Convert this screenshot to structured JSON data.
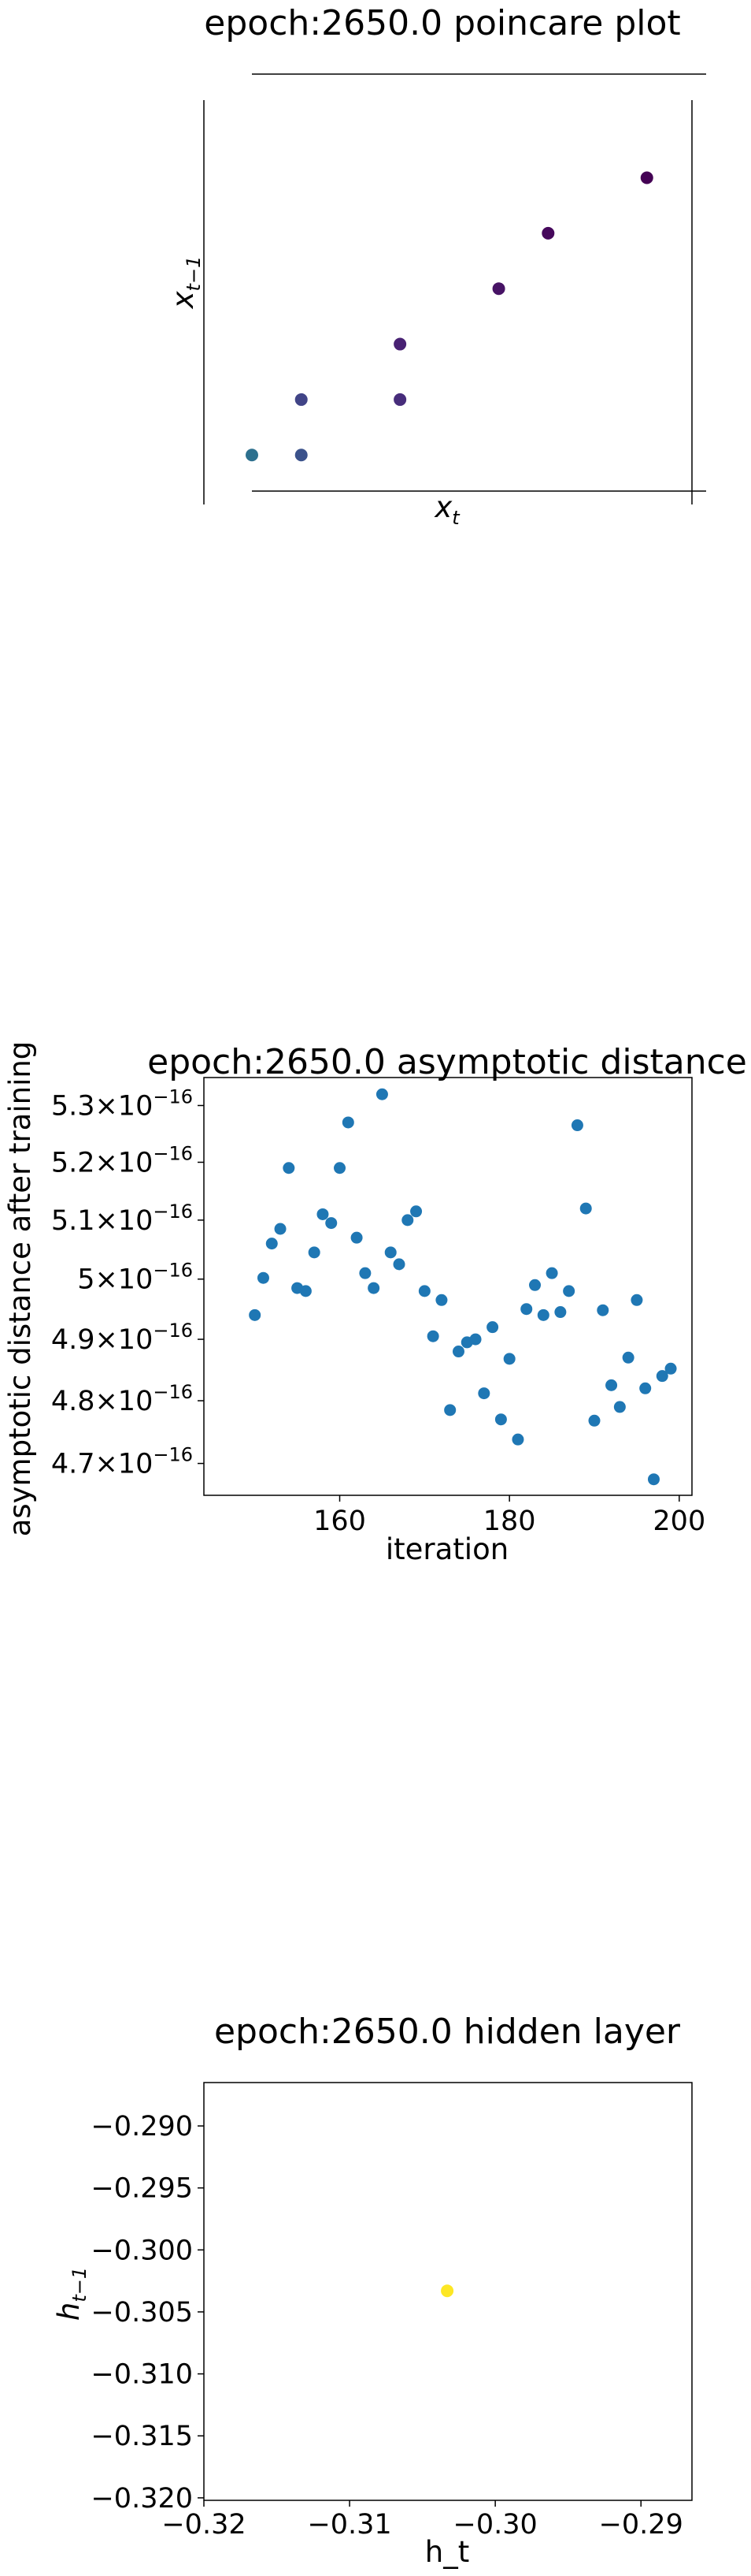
{
  "chart_data": [
    {
      "type": "scatter",
      "title": "epoch:2650.0 poincare plot",
      "xlabel_base": "x",
      "xlabel_sub": "t",
      "ylabel_base": "x",
      "ylabel_sub": "t−1",
      "axes_visible": false,
      "colormap": "viridis",
      "points": [
        {
          "x": 0,
          "y": 0,
          "color": "#2d708e"
        },
        {
          "x": 1,
          "y": 0,
          "color": "#3b528b"
        },
        {
          "x": 1,
          "y": 1,
          "color": "#414487"
        },
        {
          "x": 3,
          "y": 1,
          "color": "#472d7b"
        },
        {
          "x": 3,
          "y": 2,
          "color": "#482173"
        },
        {
          "x": 5,
          "y": 3,
          "color": "#471365"
        },
        {
          "x": 6,
          "y": 4,
          "color": "#46085c"
        },
        {
          "x": 8,
          "y": 5,
          "color": "#440154"
        }
      ],
      "xlim": [
        0,
        9.2
      ],
      "ylim": [
        -0.65,
        6.4
      ]
    },
    {
      "type": "scatter",
      "title": "epoch:2650.0 asymptotic distance",
      "xlabel": "iteration",
      "ylabel": "asymptotic distance after training",
      "yscale": "log",
      "marker_color": "#1f77b4",
      "xlim": [
        144,
        201.5
      ],
      "ylim": [
        4.65e-16,
        5.35e-16
      ],
      "x_ticks": [
        {
          "value": 160,
          "label": "160"
        },
        {
          "value": 180,
          "label": "180"
        },
        {
          "value": 200,
          "label": "200"
        }
      ],
      "y_ticks": [
        {
          "value": 4.7e-16,
          "base": "4.7",
          "exp": "−16"
        },
        {
          "value": 4.8e-16,
          "base": "4.8",
          "exp": "−16"
        },
        {
          "value": 4.9e-16,
          "base": "4.9",
          "exp": "−16"
        },
        {
          "value": 5e-16,
          "base": "5",
          "exp": "−16"
        },
        {
          "value": 5.1e-16,
          "base": "5.1",
          "exp": "−16"
        },
        {
          "value": 5.2e-16,
          "base": "5.2",
          "exp": "−16"
        },
        {
          "value": 5.3e-16,
          "base": "5.3",
          "exp": "−16"
        }
      ],
      "points": [
        {
          "x": 150,
          "y": 4.94e-16
        },
        {
          "x": 151,
          "y": 5.002e-16
        },
        {
          "x": 152,
          "y": 5.06e-16
        },
        {
          "x": 153,
          "y": 5.085e-16
        },
        {
          "x": 154,
          "y": 5.19e-16
        },
        {
          "x": 155,
          "y": 4.985e-16
        },
        {
          "x": 156,
          "y": 4.98e-16
        },
        {
          "x": 157,
          "y": 5.045e-16
        },
        {
          "x": 158,
          "y": 5.11e-16
        },
        {
          "x": 159,
          "y": 5.095e-16
        },
        {
          "x": 160,
          "y": 5.19e-16
        },
        {
          "x": 161,
          "y": 5.27e-16
        },
        {
          "x": 162,
          "y": 5.07e-16
        },
        {
          "x": 163,
          "y": 5.01e-16
        },
        {
          "x": 164,
          "y": 4.985e-16
        },
        {
          "x": 165,
          "y": 5.32e-16
        },
        {
          "x": 166,
          "y": 5.045e-16
        },
        {
          "x": 167,
          "y": 5.025e-16
        },
        {
          "x": 168,
          "y": 5.1e-16
        },
        {
          "x": 169,
          "y": 5.115e-16
        },
        {
          "x": 170,
          "y": 4.98e-16
        },
        {
          "x": 171,
          "y": 4.905e-16
        },
        {
          "x": 172,
          "y": 4.965e-16
        },
        {
          "x": 173,
          "y": 4.785e-16
        },
        {
          "x": 174,
          "y": 4.88e-16
        },
        {
          "x": 175,
          "y": 4.895e-16
        },
        {
          "x": 176,
          "y": 4.9e-16
        },
        {
          "x": 177,
          "y": 4.812e-16
        },
        {
          "x": 178,
          "y": 4.92e-16
        },
        {
          "x": 179,
          "y": 4.77e-16
        },
        {
          "x": 180,
          "y": 4.868e-16
        },
        {
          "x": 181,
          "y": 4.738e-16
        },
        {
          "x": 182,
          "y": 4.95e-16
        },
        {
          "x": 183,
          "y": 4.99e-16
        },
        {
          "x": 184,
          "y": 4.94e-16
        },
        {
          "x": 185,
          "y": 5.01e-16
        },
        {
          "x": 186,
          "y": 4.945e-16
        },
        {
          "x": 187,
          "y": 4.98e-16
        },
        {
          "x": 188,
          "y": 5.265e-16
        },
        {
          "x": 189,
          "y": 5.12e-16
        },
        {
          "x": 190,
          "y": 4.768e-16
        },
        {
          "x": 191,
          "y": 4.948e-16
        },
        {
          "x": 192,
          "y": 4.825e-16
        },
        {
          "x": 193,
          "y": 4.79e-16
        },
        {
          "x": 194,
          "y": 4.87e-16
        },
        {
          "x": 195,
          "y": 4.965e-16
        },
        {
          "x": 196,
          "y": 4.82e-16
        },
        {
          "x": 197,
          "y": 4.675e-16
        },
        {
          "x": 198,
          "y": 4.84e-16
        },
        {
          "x": 199,
          "y": 4.852e-16
        }
      ]
    },
    {
      "type": "scatter",
      "title": "epoch:2650.0 hidden layer",
      "xlabel": "h_t",
      "ylabel_base": "h",
      "ylabel_sub": "t−1",
      "xlim": [
        -0.32,
        -0.2865
      ],
      "ylim": [
        -0.3202,
        -0.2865
      ],
      "x_ticks": [
        {
          "value": -0.32,
          "label": "−0.32"
        },
        {
          "value": -0.31,
          "label": "−0.31"
        },
        {
          "value": -0.3,
          "label": "−0.30"
        },
        {
          "value": -0.29,
          "label": "−0.29"
        }
      ],
      "y_ticks": [
        {
          "value": -0.29,
          "label": "−0.290"
        },
        {
          "value": -0.295,
          "label": "−0.295"
        },
        {
          "value": -0.3,
          "label": "−0.300"
        },
        {
          "value": -0.305,
          "label": "−0.305"
        },
        {
          "value": -0.31,
          "label": "−0.310"
        },
        {
          "value": -0.315,
          "label": "−0.315"
        },
        {
          "value": -0.32,
          "label": "−0.320"
        }
      ],
      "points": [
        {
          "x": -0.3033,
          "y": -0.3033,
          "color": "#fde725"
        }
      ]
    }
  ]
}
